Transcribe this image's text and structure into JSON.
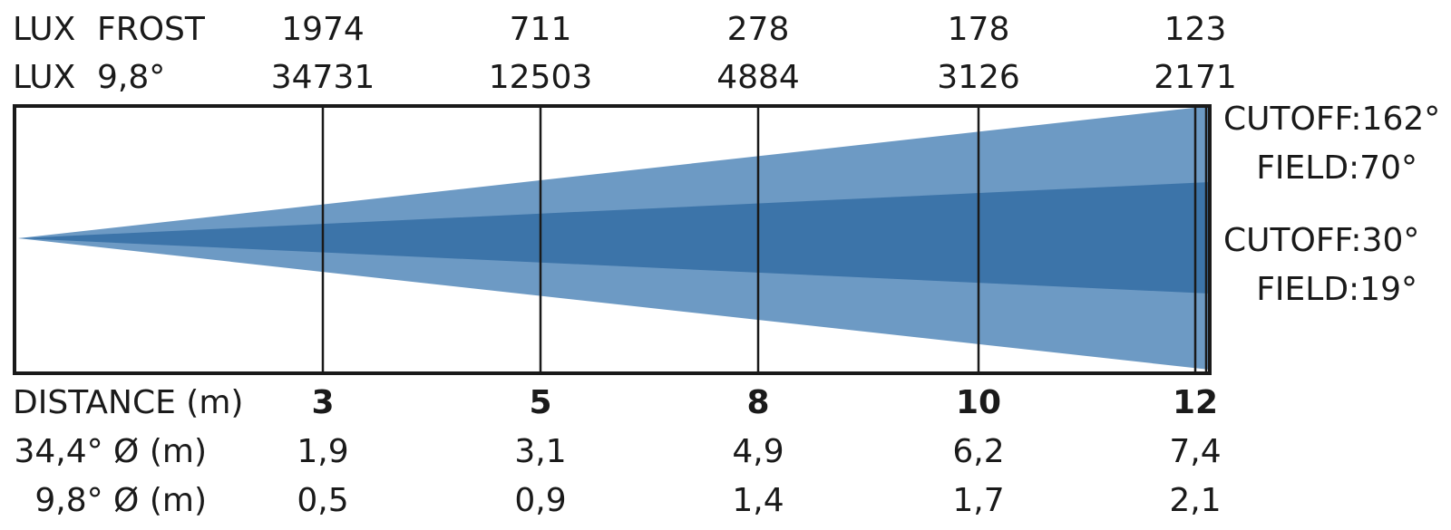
{
  "lux_rows": [
    {
      "label": "LUX",
      "sublabel": "FROST",
      "values": [
        "1974",
        "711",
        "278",
        "178",
        "123"
      ]
    },
    {
      "label": "LUX",
      "sublabel": "9,8°",
      "values": [
        "34731",
        "12503",
        "4884",
        "3126",
        "2171"
      ]
    }
  ],
  "distance": {
    "label": "DISTANCE (m)",
    "values": [
      "3",
      "5",
      "8",
      "10",
      "12"
    ]
  },
  "diameter_rows": [
    {
      "label": "34,4° Ø (m)",
      "values": [
        "1,9",
        "3,1",
        "4,9",
        "6,2",
        "7,4"
      ]
    },
    {
      "label": "9,8° Ø (m)",
      "values": [
        "0,5",
        "0,9",
        "1,4",
        "1,7",
        "2,1"
      ]
    }
  ],
  "beam_labels": [
    "CUTOFF:162°",
    "FIELD:70°",
    "CUTOFF:30°",
    "FIELD:19°"
  ]
}
